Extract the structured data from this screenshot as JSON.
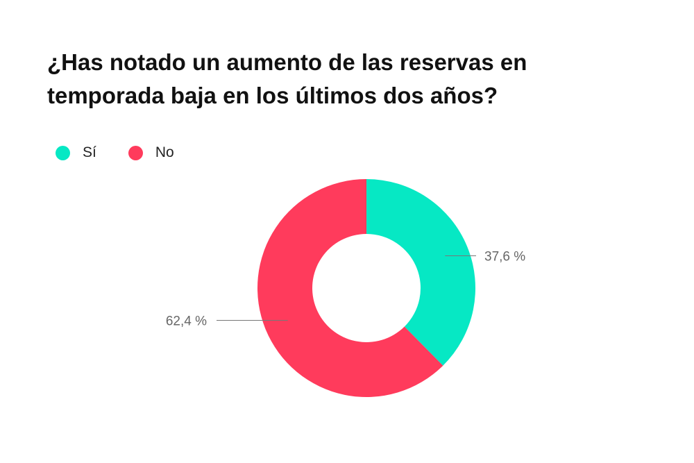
{
  "chart_data": {
    "type": "pie",
    "variant": "donut",
    "title": "¿Has notado un aumento de las reservas en temporada baja en los últimos dos años?",
    "legend_position": "top-left",
    "categories": [
      "Sí",
      "No"
    ],
    "values": [
      37.6,
      62.4
    ],
    "value_labels": [
      "37,6 %",
      "62,4 %"
    ],
    "colors": [
      "#06e8c4",
      "#ff3b5c"
    ]
  }
}
